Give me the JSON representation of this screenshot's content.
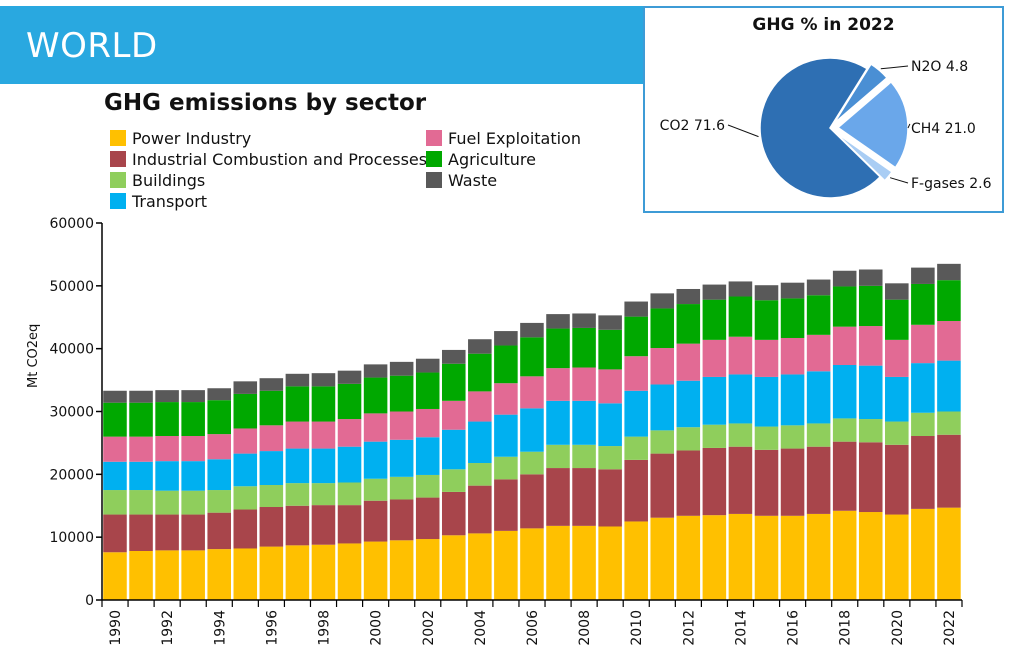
{
  "banner": {
    "title": "WORLD"
  },
  "pie": {
    "title": "GHG % in 2022",
    "slices": [
      {
        "label": "CO2",
        "value": 71.6,
        "text": "CO2 71.6",
        "color": "#2e6fb3"
      },
      {
        "label": "N2O",
        "value": 4.8,
        "text": "N2O 4.8",
        "color": "#4a8fd4"
      },
      {
        "label": "CH4",
        "value": 21.0,
        "text": "CH4 21.0",
        "color": "#6aa7ea"
      },
      {
        "label": "F-gases",
        "value": 2.6,
        "text": "F-gases 2.6",
        "color": "#a9cdf4"
      }
    ]
  },
  "chart_data": {
    "type": "bar",
    "stacked": true,
    "title": "GHG emissions by sector",
    "ylabel": "Mt CO2eq",
    "ylim": [
      0,
      60000
    ],
    "yticks": [
      0,
      10000,
      20000,
      30000,
      40000,
      50000,
      60000
    ],
    "ytick_labels": [
      "0",
      "10000",
      "20000",
      "30000",
      "40000",
      "50000",
      "60000"
    ],
    "categories": [
      "1990",
      "1991",
      "1992",
      "1993",
      "1994",
      "1995",
      "1996",
      "1997",
      "1998",
      "1999",
      "2000",
      "2001",
      "2002",
      "2003",
      "2004",
      "2005",
      "2006",
      "2007",
      "2008",
      "2009",
      "2010",
      "2011",
      "2012",
      "2013",
      "2014",
      "2015",
      "2016",
      "2017",
      "2018",
      "2019",
      "2020",
      "2021",
      "2022"
    ],
    "xtick_labels": [
      "1990",
      "1992",
      "1994",
      "1996",
      "1998",
      "2000",
      "2002",
      "2004",
      "2006",
      "2008",
      "2010",
      "2012",
      "2014",
      "2016",
      "2018",
      "2020",
      "2022"
    ],
    "legend_position": "top-left",
    "series": [
      {
        "name": "Power Industry",
        "color": "#ffc000",
        "values": [
          7600,
          7800,
          7900,
          7900,
          8100,
          8200,
          8500,
          8700,
          8800,
          9000,
          9300,
          9500,
          9700,
          10300,
          10600,
          11000,
          11400,
          11800,
          11800,
          11700,
          12500,
          13100,
          13400,
          13500,
          13700,
          13400,
          13400,
          13700,
          14200,
          14000,
          13600,
          14500,
          14700
        ]
      },
      {
        "name": "Industrial Combustion and Processes",
        "color": "#a8454b",
        "values": [
          6000,
          5800,
          5700,
          5700,
          5800,
          6200,
          6300,
          6300,
          6300,
          6100,
          6500,
          6500,
          6600,
          6900,
          7600,
          8200,
          8600,
          9200,
          9200,
          9100,
          9800,
          10200,
          10400,
          10700,
          10700,
          10500,
          10700,
          10700,
          11000,
          11100,
          11100,
          11600,
          11600
        ]
      },
      {
        "name": "Buildings",
        "color": "#8fce5c",
        "values": [
          3900,
          3900,
          3800,
          3800,
          3600,
          3700,
          3500,
          3600,
          3500,
          3600,
          3500,
          3600,
          3600,
          3600,
          3600,
          3600,
          3600,
          3700,
          3700,
          3700,
          3700,
          3700,
          3700,
          3700,
          3700,
          3700,
          3700,
          3700,
          3700,
          3700,
          3700,
          3700,
          3700
        ]
      },
      {
        "name": "Transport",
        "color": "#00b0f0",
        "values": [
          4500,
          4500,
          4700,
          4700,
          4900,
          5200,
          5400,
          5500,
          5500,
          5700,
          5900,
          5900,
          6000,
          6300,
          6600,
          6700,
          6900,
          7000,
          7000,
          6800,
          7300,
          7300,
          7400,
          7600,
          7800,
          7900,
          8100,
          8300,
          8500,
          8500,
          7100,
          7900,
          8100
        ]
      },
      {
        "name": "Fuel Exploitation",
        "color": "#e26a94",
        "values": [
          4000,
          4000,
          4000,
          4000,
          4000,
          4000,
          4100,
          4300,
          4300,
          4400,
          4500,
          4500,
          4500,
          4600,
          4800,
          5000,
          5100,
          5200,
          5300,
          5400,
          5500,
          5800,
          5900,
          5900,
          6000,
          5900,
          5800,
          5800,
          6100,
          6300,
          5900,
          6100,
          6300
        ]
      },
      {
        "name": "Agriculture",
        "color": "#00a800",
        "values": [
          5400,
          5400,
          5400,
          5400,
          5400,
          5500,
          5500,
          5600,
          5600,
          5600,
          5700,
          5700,
          5800,
          5900,
          6000,
          6000,
          6200,
          6300,
          6300,
          6300,
          6300,
          6300,
          6300,
          6400,
          6400,
          6300,
          6300,
          6300,
          6400,
          6400,
          6400,
          6500,
          6500
        ]
      },
      {
        "name": "Waste",
        "color": "#595959",
        "values": [
          1900,
          1900,
          1900,
          1900,
          1900,
          2000,
          2000,
          2000,
          2100,
          2100,
          2100,
          2200,
          2200,
          2200,
          2300,
          2300,
          2300,
          2300,
          2300,
          2300,
          2400,
          2400,
          2400,
          2400,
          2400,
          2400,
          2500,
          2500,
          2500,
          2600,
          2600,
          2600,
          2600
        ]
      }
    ]
  }
}
